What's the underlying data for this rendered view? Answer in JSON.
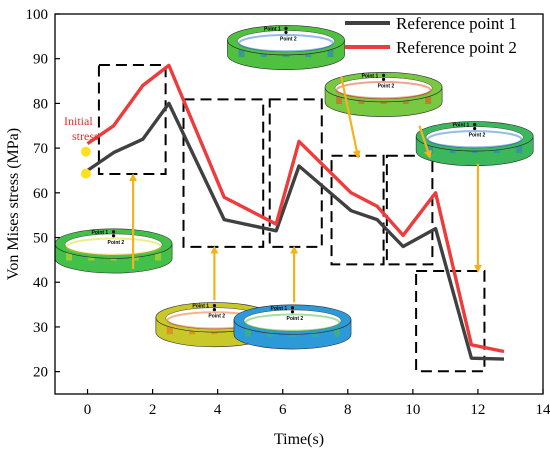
{
  "chart_data": {
    "type": "line",
    "xlabel": "Time(s)",
    "ylabel": "Von  Mises  stress (MPa)",
    "xlim": [
      -1,
      14
    ],
    "ylim": [
      15,
      100
    ],
    "xticks": [
      0,
      2,
      4,
      6,
      8,
      10,
      12,
      14
    ],
    "yticks": [
      20,
      30,
      40,
      50,
      60,
      70,
      80,
      90,
      100
    ],
    "series": [
      {
        "name": "Reference point 1",
        "color": "#404040",
        "x": [
          0,
          0.8,
          1.7,
          2.5,
          4.2,
          5.8,
          6.5,
          8.1,
          8.9,
          9.7,
          10.7,
          11.8,
          12.8
        ],
        "y": [
          65,
          69,
          72,
          80,
          54,
          51.5,
          66,
          56,
          54,
          48,
          52,
          23,
          22.8
        ]
      },
      {
        "name": "Reference point 2",
        "color": "#ee3b3b",
        "x": [
          0,
          0.8,
          1.7,
          2.5,
          4.2,
          5.8,
          6.5,
          8.1,
          8.9,
          9.7,
          10.7,
          11.8,
          12.8
        ],
        "y": [
          71,
          75,
          84,
          88.5,
          59,
          53,
          71.5,
          60,
          57,
          50.5,
          60,
          26,
          24.5
        ]
      }
    ],
    "annotation": "Initial stress",
    "initial_points": [
      {
        "x": -0.05,
        "y": 69.2,
        "color": "#ffe020"
      },
      {
        "x": -0.05,
        "y": 64.3,
        "color": "#ffe020"
      }
    ],
    "dashed_boxes": [
      {
        "x0": 0.35,
        "x1": 2.4,
        "y0": 64.2,
        "y1": 88.6
      },
      {
        "x0": 2.95,
        "x1": 5.4,
        "y0": 47.9,
        "y1": 80.9
      },
      {
        "x0": 5.6,
        "x1": 7.2,
        "y0": 47.9,
        "y1": 80.9
      },
      {
        "x0": 7.5,
        "x1": 9.1,
        "y0": 44,
        "y1": 68.3
      },
      {
        "x0": 9.2,
        "x1": 10.6,
        "y0": 44,
        "y1": 68.3
      },
      {
        "x0": 10.1,
        "x1": 12.2,
        "y0": 20.1,
        "y1": 42.5
      }
    ],
    "arrows": [
      {
        "x0": 1.4,
        "y0": 43,
        "x1": 1.4,
        "y1": 63.5
      },
      {
        "x0": 3.9,
        "y0": 36,
        "x1": 3.9,
        "y1": 47.3
      },
      {
        "x0": 6.35,
        "y0": 35.5,
        "x1": 6.35,
        "y1": 47.3
      },
      {
        "x0": 7.8,
        "y0": 86,
        "x1": 8.3,
        "y1": 68.5
      },
      {
        "x0": 10.2,
        "y0": 75,
        "x1": 10.5,
        "y1": 68.5
      },
      {
        "x0": 12.0,
        "y0": 66.5,
        "x1": 12.0,
        "y1": 43
      }
    ],
    "ring_thumbnails": [
      {
        "cx": 0.8,
        "cy": 47,
        "label1": "Point 1",
        "label2": "Point 2",
        "base": "#42c04a",
        "band": "#d8d820"
      },
      {
        "cx": 3.9,
        "cy": 30.5,
        "label1": "Point 1",
        "label2": "Point 2",
        "base": "#c8c828",
        "band": "#e86a20"
      },
      {
        "cx": 6.3,
        "cy": 30,
        "label1": "Point 1",
        "label2": "Point 2",
        "base": "#2c9ad8",
        "band": "#48c048"
      },
      {
        "cx": 6.1,
        "cy": 92.5,
        "label1": "Point 1",
        "label2": "Point 2",
        "base": "#50c040",
        "band": "#2a7ad0"
      },
      {
        "cx": 9.1,
        "cy": 82,
        "label1": "Point 1",
        "label2": "Point 2",
        "base": "#78c840",
        "band": "#e84a20"
      },
      {
        "cx": 11.9,
        "cy": 71,
        "label1": "Point 1",
        "label2": "Point 2",
        "base": "#3cb85c",
        "band": "#2a7ad0"
      }
    ]
  }
}
